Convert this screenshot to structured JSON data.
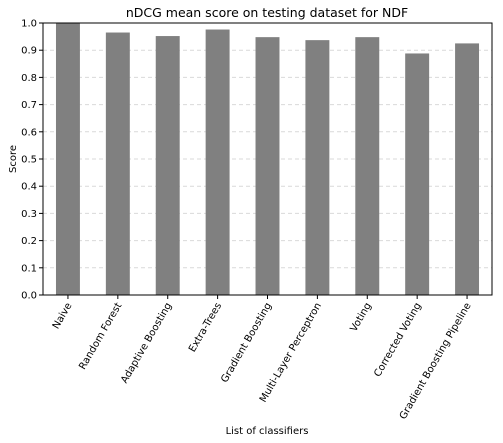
{
  "chart_data": {
    "type": "bar",
    "title": "nDCG mean score on testing dataset for NDF",
    "xlabel": "List of classifiers",
    "ylabel": "Score",
    "ylim": [
      0,
      1.0
    ],
    "yticks": [
      "0.0",
      "0.1",
      "0.2",
      "0.3",
      "0.4",
      "0.5",
      "0.6",
      "0.7",
      "0.8",
      "0.9",
      "1.0"
    ],
    "grid": "horizontal dashed",
    "bar_color": "#808080",
    "categories": [
      "Naive",
      "Random Forest",
      "Adaptive Boosting",
      "Extra-Trees",
      "Gradient Boosting",
      "Multi-Layer Perceptron",
      "Voting",
      "Corrected Voting",
      "Gradient Boosting Pipeline"
    ],
    "values": [
      1.0,
      0.965,
      0.952,
      0.976,
      0.948,
      0.937,
      0.948,
      0.888,
      0.925
    ]
  }
}
